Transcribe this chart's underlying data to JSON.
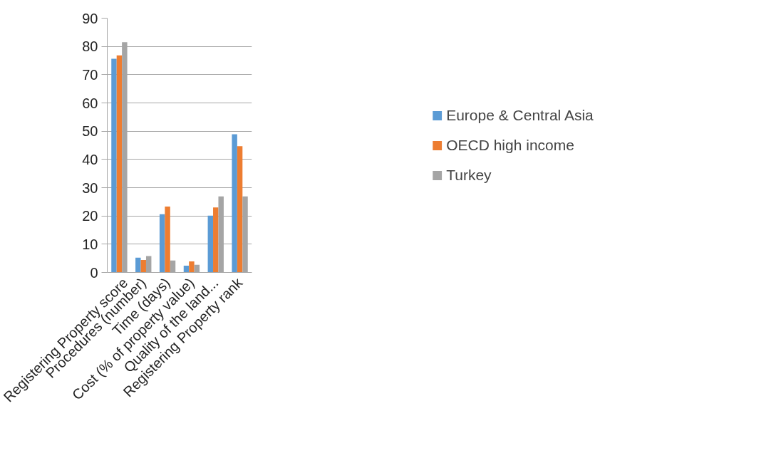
{
  "chart_data": {
    "type": "bar",
    "categories": [
      "Registering Property score",
      "Procedures (number)",
      "Time (days)",
      "Cost (% of property value)",
      "Quality of the land...",
      "Registering Property rank"
    ],
    "series": [
      {
        "name": "Europe & Central Asia",
        "color": "#5b9bd5",
        "values": [
          75.6,
          5.2,
          20.6,
          2.4,
          20.1,
          48.9
        ]
      },
      {
        "name": "OECD high income",
        "color": "#ed7d31",
        "values": [
          76.8,
          4.4,
          23.3,
          3.9,
          23.0,
          44.7
        ]
      },
      {
        "name": "Turkey",
        "color": "#a5a5a5",
        "values": [
          81.5,
          5.8,
          4.2,
          2.7,
          26.9,
          26.9
        ]
      }
    ],
    "ylim": [
      0,
      90
    ],
    "yticks": [
      0,
      10,
      20,
      30,
      40,
      50,
      60,
      70,
      80,
      90
    ],
    "grid": "y",
    "legend": "right"
  }
}
